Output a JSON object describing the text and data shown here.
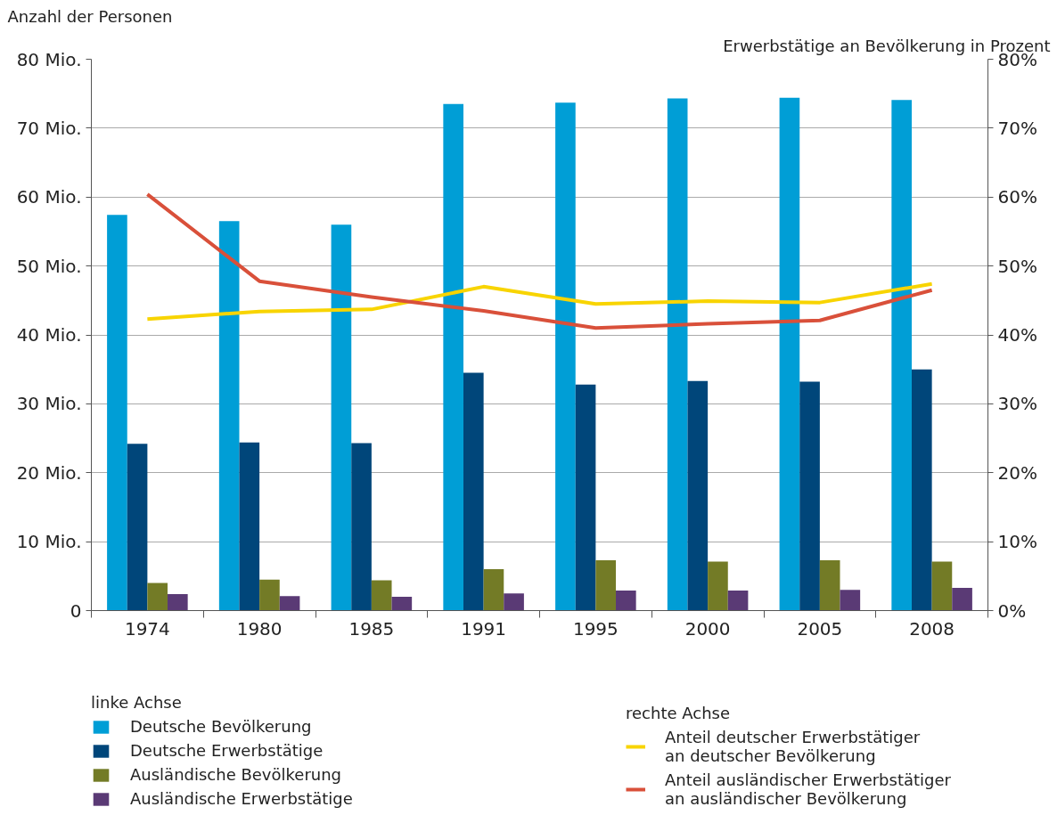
{
  "chart_data": {
    "type": "bar",
    "ylabel": "Anzahl der Personen",
    "y2label": "Erwerbstätige an Bevölkerung in Prozent",
    "categories": [
      "1974",
      "1980",
      "1985",
      "1991",
      "1995",
      "2000",
      "2005",
      "2008"
    ],
    "series": [
      {
        "name": "Deutsche Bevölkerung",
        "color": "#009ed6",
        "values": [
          57.4,
          56.5,
          56.0,
          73.5,
          73.7,
          74.3,
          74.4,
          74.1
        ]
      },
      {
        "name": "Deutsche Erwerbstätige",
        "color": "#00467a",
        "values": [
          24.2,
          24.4,
          24.3,
          34.5,
          32.8,
          33.3,
          33.2,
          35.0
        ]
      },
      {
        "name": "Ausländische Bevölkerung",
        "color": "#737b26",
        "values": [
          4.0,
          4.5,
          4.4,
          6.0,
          7.3,
          7.1,
          7.3,
          7.1
        ]
      },
      {
        "name": "Ausländische Erwerbstätige",
        "color": "#5a3a75",
        "values": [
          2.4,
          2.1,
          2.0,
          2.5,
          2.9,
          2.9,
          3.0,
          3.3
        ]
      },
      {
        "name": "Anteil deutscher Erwerbstätiger\nan deutscher Bevölkerung",
        "type": "line",
        "axis": "y2",
        "color": "#f8d400",
        "values": [
          42.3,
          43.4,
          43.7,
          47.0,
          44.5,
          44.9,
          44.7,
          47.4
        ]
      },
      {
        "name": "Anteil ausländischer Erwerbstätiger\nan ausländischer Bevölkerung",
        "type": "line",
        "axis": "y2",
        "color": "#d9503a",
        "values": [
          60.4,
          47.8,
          45.5,
          43.5,
          41.0,
          41.6,
          42.1,
          46.5
        ]
      }
    ],
    "ylim": [
      0,
      80
    ],
    "yticks": [
      0,
      {
        "value": 10,
        "label": "10 Mio."
      },
      {
        "value": 20,
        "label": "20 Mio."
      },
      {
        "value": 30,
        "label": "30 Mio."
      },
      {
        "value": 40,
        "label": "40 Mio."
      },
      {
        "value": 50,
        "label": "50 Mio."
      },
      {
        "value": 60,
        "label": "60 Mio."
      },
      {
        "value": 70,
        "label": "70 Mio."
      },
      {
        "value": 80,
        "label": "80 Mio."
      }
    ],
    "y2lim": [
      0,
      80
    ],
    "y2ticks": [
      {
        "value": 0,
        "label": "0%"
      },
      {
        "value": 10,
        "label": "10%"
      },
      {
        "value": 20,
        "label": "20%"
      },
      {
        "value": 30,
        "label": "30%"
      },
      {
        "value": 40,
        "label": "40%"
      },
      {
        "value": 50,
        "label": "50%"
      },
      {
        "value": 60,
        "label": "60%"
      },
      {
        "value": 70,
        "label": "70%"
      },
      {
        "value": 80,
        "label": "80%"
      }
    ],
    "annotations": [
      "linke Achse",
      "rechte Achse"
    ],
    "grid": "y",
    "legend": "bottom"
  }
}
